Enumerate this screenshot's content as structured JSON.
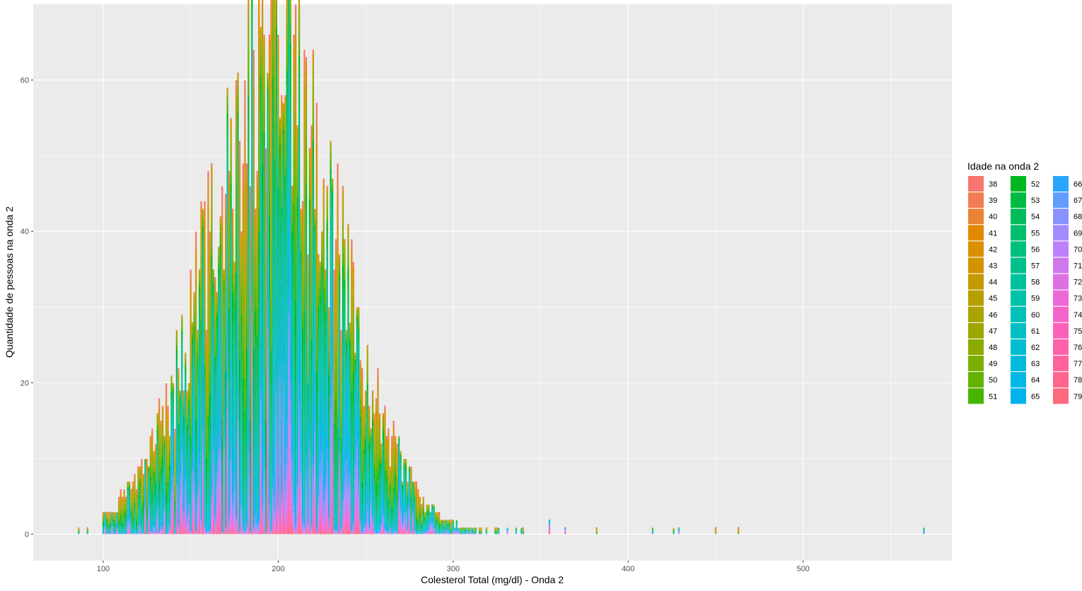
{
  "chart_data": {
    "type": "bar",
    "stacked": true,
    "xlabel": "Colesterol Total (mg/dl) - Onda 2",
    "ylabel": "Quantidade de pessoas na onda 2",
    "xlim": [
      60,
      585
    ],
    "ylim": [
      -3.5,
      70
    ],
    "x_ticks": [
      100,
      200,
      300,
      400,
      500
    ],
    "y_ticks": [
      0,
      20,
      40,
      60
    ],
    "grid": true,
    "legend": {
      "title": "Idade na onda 2",
      "position": "right",
      "entries": [
        "38",
        "39",
        "40",
        "41",
        "42",
        "43",
        "44",
        "45",
        "46",
        "47",
        "48",
        "49",
        "50",
        "51",
        "52",
        "53",
        "54",
        "55",
        "56",
        "57",
        "58",
        "59",
        "60",
        "61",
        "62",
        "63",
        "64",
        "65",
        "66",
        "67",
        "68",
        "69",
        "70",
        "71",
        "72",
        "73",
        "74",
        "75",
        "76",
        "77",
        "78",
        "79"
      ]
    },
    "colors": [
      "#F8766D",
      "#F27D52",
      "#EB8335",
      "#E38900",
      "#DA8F00",
      "#CF9400",
      "#C49A00",
      "#B79F00",
      "#AAA300",
      "#9CA700",
      "#8CAB00",
      "#7AAE00",
      "#64B200",
      "#45B500",
      "#00B81F",
      "#00BA42",
      "#00BC59",
      "#00BE6C",
      "#00BF7D",
      "#00C08D",
      "#00C19C",
      "#00C1AA",
      "#00C0B8",
      "#00BFC4",
      "#00BDD0",
      "#00BADB",
      "#00B7E5",
      "#00B2EE",
      "#2AA5FD",
      "#619CFF",
      "#8893FF",
      "#A58AFF",
      "#BC81F8",
      "#CF78EE",
      "#DF70E3",
      "#EC69D6",
      "#F564C8",
      "#FC61BA",
      "#FF61AB",
      "#FF629C",
      "#FF658D",
      "#FD697D"
    ],
    "distribution": {
      "mean_x": 197,
      "sd_x": 38,
      "peak_count": 68
    },
    "outliers": [
      {
        "x": 86,
        "count": 1
      },
      {
        "x": 91,
        "count": 1
      },
      {
        "x": 355,
        "count": 2
      },
      {
        "x": 364,
        "count": 1
      },
      {
        "x": 382,
        "count": 1
      },
      {
        "x": 414,
        "count": 1
      },
      {
        "x": 426,
        "count": 1
      },
      {
        "x": 429,
        "count": 1
      },
      {
        "x": 450,
        "count": 1
      },
      {
        "x": 463,
        "count": 1
      },
      {
        "x": 569,
        "count": 1
      }
    ]
  }
}
